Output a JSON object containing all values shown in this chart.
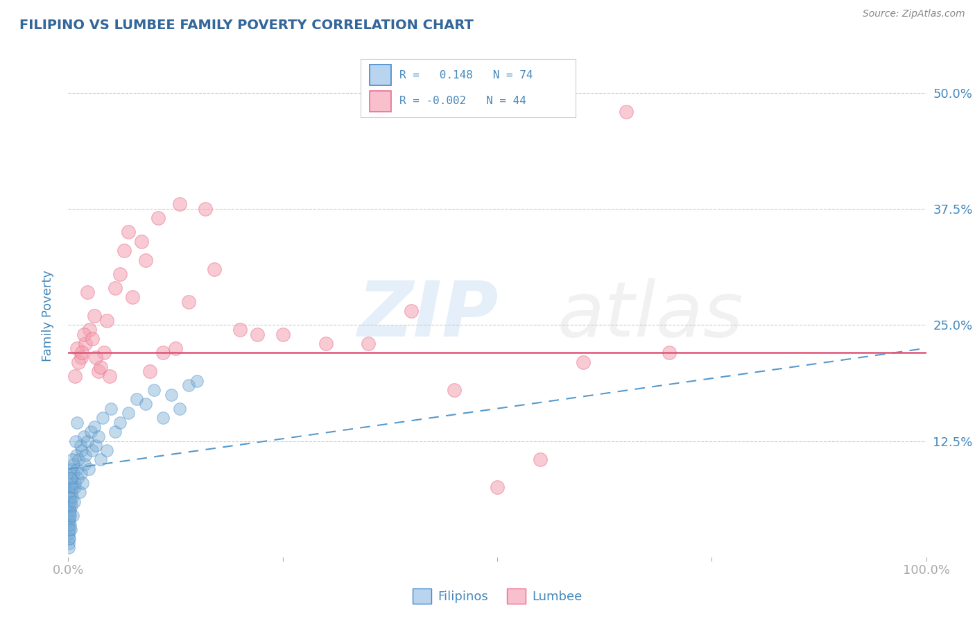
{
  "title": "FILIPINO VS LUMBEE FAMILY POVERTY CORRELATION CHART",
  "source": "Source: ZipAtlas.com",
  "x_min": 0.0,
  "x_max": 100.0,
  "y_min": 0.0,
  "y_max": 52.0,
  "filipino_R": 0.148,
  "filipino_N": 74,
  "lumbee_R": -0.002,
  "lumbee_N": 44,
  "filipino_color": "#7AADD4",
  "lumbee_color": "#F4A0B0",
  "filipino_edge_color": "#4488CC",
  "lumbee_edge_color": "#E87090",
  "filipino_legend_fill": "#B8D4EE",
  "lumbee_legend_fill": "#F8C0CC",
  "trendline_blue": "#5599CC",
  "trendline_pink": "#DD5577",
  "background_color": "#FFFFFF",
  "grid_color": "#CCCCCC",
  "title_color": "#336699",
  "axis_color": "#4488BB",
  "filipino_trend_start_y": 9.5,
  "filipino_trend_end_y": 22.5,
  "lumbee_trend_y": 22.0,
  "filipino_scatter_x": [
    0.02,
    0.03,
    0.04,
    0.05,
    0.06,
    0.07,
    0.08,
    0.09,
    0.1,
    0.11,
    0.12,
    0.13,
    0.14,
    0.15,
    0.16,
    0.17,
    0.18,
    0.19,
    0.2,
    0.22,
    0.24,
    0.26,
    0.28,
    0.3,
    0.32,
    0.35,
    0.38,
    0.4,
    0.45,
    0.5,
    0.55,
    0.6,
    0.65,
    0.7,
    0.75,
    0.8,
    0.9,
    1.0,
    1.1,
    1.2,
    1.3,
    1.4,
    1.5,
    1.6,
    1.7,
    1.8,
    1.9,
    2.0,
    2.2,
    2.4,
    2.6,
    2.8,
    3.0,
    3.2,
    3.5,
    3.8,
    4.0,
    4.5,
    5.0,
    5.5,
    6.0,
    7.0,
    8.0,
    9.0,
    10.0,
    11.0,
    12.0,
    13.0,
    14.0,
    15.0,
    0.25,
    0.45,
    0.85,
    1.05
  ],
  "filipino_scatter_y": [
    2.0,
    1.5,
    3.0,
    2.5,
    4.0,
    1.0,
    3.5,
    2.0,
    5.0,
    4.5,
    3.0,
    6.0,
    5.5,
    4.0,
    7.0,
    3.5,
    6.5,
    8.0,
    5.0,
    7.5,
    4.5,
    9.0,
    6.0,
    8.5,
    3.0,
    7.0,
    5.5,
    9.5,
    6.5,
    4.5,
    7.5,
    10.0,
    9.0,
    6.0,
    8.0,
    7.5,
    11.0,
    9.5,
    8.5,
    10.5,
    7.0,
    12.0,
    9.0,
    11.5,
    8.0,
    13.0,
    10.0,
    11.0,
    12.5,
    9.5,
    13.5,
    11.5,
    14.0,
    12.0,
    13.0,
    10.5,
    15.0,
    11.5,
    16.0,
    13.5,
    14.5,
    15.5,
    17.0,
    16.5,
    18.0,
    15.0,
    17.5,
    16.0,
    18.5,
    19.0,
    8.5,
    10.5,
    12.5,
    14.5
  ],
  "lumbee_scatter_x": [
    1.0,
    1.5,
    2.0,
    2.5,
    3.0,
    3.5,
    4.5,
    6.0,
    7.5,
    9.0,
    11.0,
    14.0,
    17.0,
    25.0,
    40.0,
    55.0,
    65.0,
    70.0,
    1.2,
    1.8,
    2.2,
    2.8,
    3.8,
    4.2,
    5.5,
    7.0,
    8.5,
    10.5,
    13.0,
    20.0,
    30.0,
    45.0,
    60.0,
    4.8,
    6.5,
    9.5,
    12.5,
    16.0,
    22.0,
    35.0,
    50.0,
    0.8,
    1.6,
    3.2
  ],
  "lumbee_scatter_y": [
    22.5,
    21.5,
    23.0,
    24.5,
    26.0,
    20.0,
    25.5,
    30.5,
    28.0,
    32.0,
    22.0,
    27.5,
    31.0,
    24.0,
    26.5,
    10.5,
    48.0,
    22.0,
    21.0,
    24.0,
    28.5,
    23.5,
    20.5,
    22.0,
    29.0,
    35.0,
    34.0,
    36.5,
    38.0,
    24.5,
    23.0,
    18.0,
    21.0,
    19.5,
    33.0,
    20.0,
    22.5,
    37.5,
    24.0,
    23.0,
    7.5,
    19.5,
    22.0,
    21.5
  ]
}
